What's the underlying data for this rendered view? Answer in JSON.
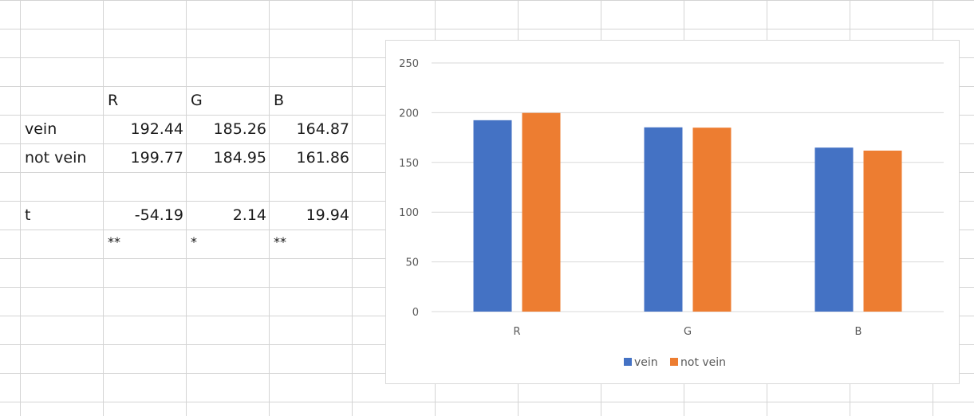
{
  "sheet": {
    "headers": [
      "R",
      "G",
      "B"
    ],
    "rows": [
      {
        "label": "vein",
        "values": [
          "192.44",
          "185.26",
          "164.87"
        ]
      },
      {
        "label": "not vein",
        "values": [
          "199.77",
          "184.95",
          "161.86"
        ]
      },
      {
        "label": "t",
        "values": [
          "-54.19",
          "2.14",
          "19.94"
        ]
      },
      {
        "label": "",
        "values": [
          "**",
          "*",
          "**"
        ]
      }
    ]
  },
  "chart_data": {
    "type": "bar",
    "categories": [
      "R",
      "G",
      "B"
    ],
    "series": [
      {
        "name": "vein",
        "values": [
          192.44,
          185.26,
          164.87
        ],
        "color": "#4472C4"
      },
      {
        "name": "not vein",
        "values": [
          199.77,
          184.95,
          161.86
        ],
        "color": "#ED7D31"
      }
    ],
    "ylim": [
      0,
      250
    ],
    "yticks": [
      "0",
      "50",
      "100",
      "150",
      "200",
      "250"
    ],
    "grid": true,
    "legend": "bottom"
  }
}
